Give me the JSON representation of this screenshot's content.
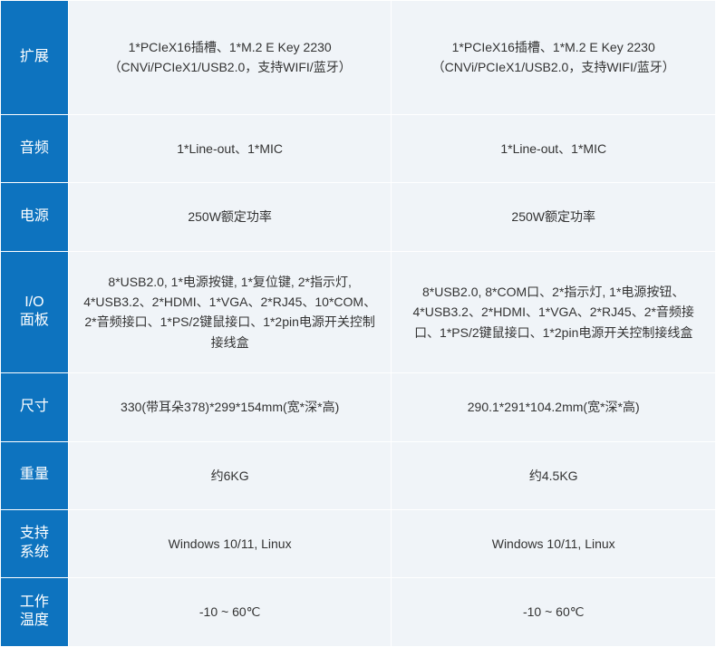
{
  "table": {
    "label_bg": "#0d73bf",
    "label_color": "#ffffff",
    "value_bg": "#f0f4f8",
    "value_color": "#333333",
    "border_color": "#ffffff",
    "rows": [
      {
        "label": "扩展",
        "col1": "1*PCIeX16插槽、1*M.2 E Key 2230（CNVi/PCIeX1/USB2.0，支持WIFI/蓝牙）",
        "col2": "1*PCIeX16插槽、1*M.2 E Key 2230（CNVi/PCIeX1/USB2.0，支持WIFI/蓝牙）"
      },
      {
        "label": "音频",
        "col1": "1*Line-out、1*MIC",
        "col2": "1*Line-out、1*MIC"
      },
      {
        "label": "电源",
        "col1": "250W额定功率",
        "col2": "250W额定功率"
      },
      {
        "label": "I/O\n面板",
        "col1": "8*USB2.0, 1*电源按键, 1*复位键, 2*指示灯, 4*USB3.2、2*HDMI、1*VGA、2*RJ45、10*COM、2*音频接口、1*PS/2键鼠接口、1*2pin电源开关控制接线盒",
        "col2": "8*USB2.0, 8*COM口、2*指示灯, 1*电源按钮、4*USB3.2、2*HDMI、1*VGA、2*RJ45、2*音频接口、1*PS/2键鼠接口、1*2pin电源开关控制接线盒"
      },
      {
        "label": "尺寸",
        "col1": "330(带耳朵378)*299*154mm(宽*深*高)",
        "col2": "290.1*291*104.2mm(宽*深*高)"
      },
      {
        "label": "重量",
        "col1": "约6KG",
        "col2": "约4.5KG"
      },
      {
        "label": "支持\n系统",
        "col1": "Windows 10/11, Linux",
        "col2": "Windows 10/11, Linux"
      },
      {
        "label": "工作\n温度",
        "col1": "-10 ~ 60℃",
        "col2": "-10 ~ 60℃"
      }
    ]
  }
}
